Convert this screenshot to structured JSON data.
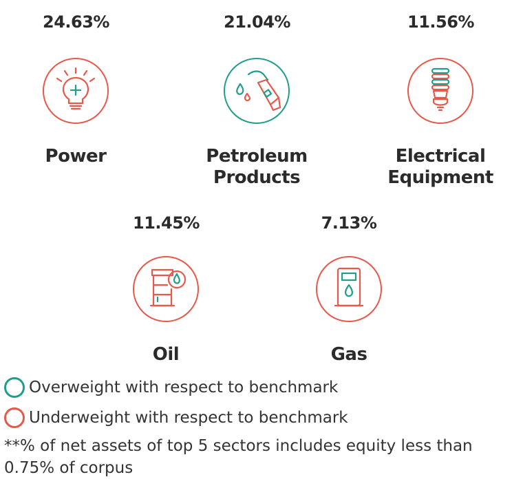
{
  "colors": {
    "overweight": "#1f9e89",
    "underweight": "#e8584a"
  },
  "sectors": [
    {
      "percent": "24.63%",
      "name_line1": "Power",
      "name_line2": "",
      "status": "underweight",
      "icon": "lightbulb-plus-icon"
    },
    {
      "percent": "21.04%",
      "name_line1": "Petroleum",
      "name_line2": "Products",
      "status": "overweight",
      "icon": "fuel-nozzle-icon"
    },
    {
      "percent": "11.56%",
      "name_line1": "Electrical",
      "name_line2": "Equipment",
      "status": "underweight",
      "icon": "cfl-bulb-icon"
    },
    {
      "percent": "11.45%",
      "name_line1": "Oil",
      "name_line2": "",
      "status": "underweight",
      "icon": "oil-barrel-icon"
    },
    {
      "percent": "7.13%",
      "name_line1": "Gas",
      "name_line2": "",
      "status": "underweight",
      "icon": "gas-pump-icon"
    }
  ],
  "legend": {
    "overweight_label": "Overweight with respect to benchmark",
    "underweight_label": "Underweight with respect to benchmark"
  },
  "footnote": "**% of net assets of top 5 sectors includes equity less than 0.75% of corpus"
}
